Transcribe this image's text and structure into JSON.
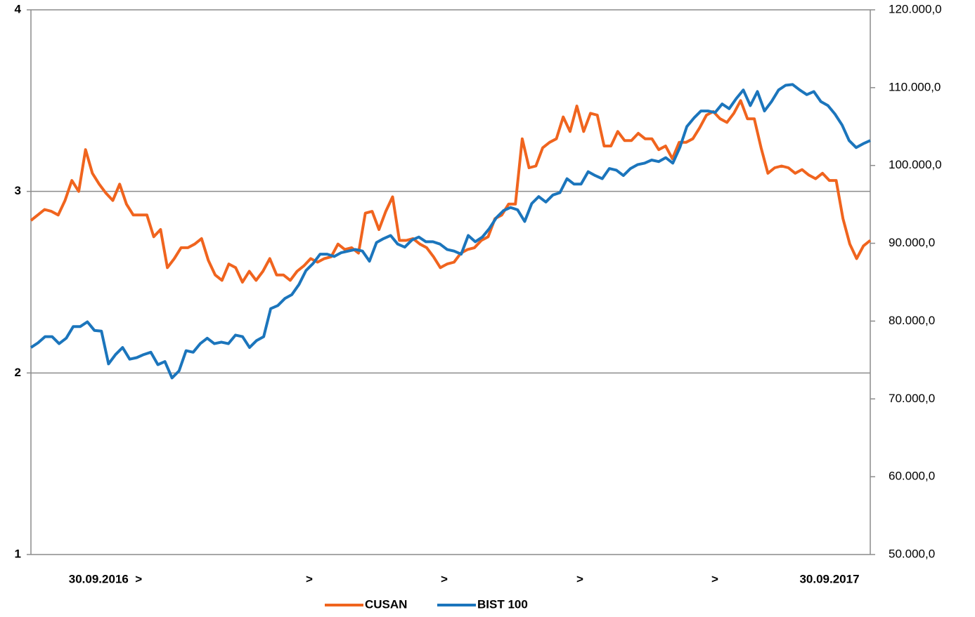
{
  "chart_data": {
    "type": "line",
    "xlabels": [
      "30.09.2016  >",
      ">",
      ">",
      ">",
      ">",
      "30.09.2017"
    ],
    "ylim": [
      1,
      4
    ],
    "yticks": [
      1,
      2,
      3,
      4
    ],
    "y2lim": [
      50000,
      120000
    ],
    "y2ticks": [
      {
        "value": 50000,
        "label": "50.000,0"
      },
      {
        "value": 60000,
        "label": "60.000,0"
      },
      {
        "value": 70000,
        "label": "70.000,0"
      },
      {
        "value": 80000,
        "label": "80.000,0"
      },
      {
        "value": 90000,
        "label": "90.000,0"
      },
      {
        "value": 100000,
        "label": "100.000,0"
      },
      {
        "value": 110000,
        "label": "110.000,0"
      },
      {
        "value": 120000,
        "label": "120.000,0"
      }
    ],
    "grid": true,
    "legend": "bottom",
    "series": [
      {
        "name": "CUSAN",
        "color": "#f0641e",
        "axis": "y",
        "values": [
          2.84,
          2.87,
          2.9,
          2.89,
          2.87,
          2.95,
          3.06,
          3.0,
          3.23,
          3.1,
          3.04,
          2.99,
          2.95,
          3.04,
          2.93,
          2.87,
          2.87,
          2.87,
          2.75,
          2.79,
          2.58,
          2.63,
          2.69,
          2.69,
          2.71,
          2.74,
          2.62,
          2.54,
          2.51,
          2.6,
          2.58,
          2.5,
          2.56,
          2.51,
          2.56,
          2.63,
          2.54,
          2.54,
          2.51,
          2.56,
          2.59,
          2.63,
          2.61,
          2.63,
          2.64,
          2.71,
          2.68,
          2.69,
          2.66,
          2.88,
          2.89,
          2.79,
          2.89,
          2.97,
          2.73,
          2.73,
          2.74,
          2.71,
          2.69,
          2.64,
          2.58,
          2.6,
          2.61,
          2.66,
          2.68,
          2.69,
          2.73,
          2.75,
          2.85,
          2.87,
          2.93,
          2.93,
          3.29,
          3.13,
          3.14,
          3.24,
          3.27,
          3.29,
          3.41,
          3.33,
          3.47,
          3.33,
          3.43,
          3.42,
          3.25,
          3.25,
          3.33,
          3.28,
          3.28,
          3.32,
          3.29,
          3.29,
          3.23,
          3.25,
          3.18,
          3.27,
          3.27,
          3.29,
          3.35,
          3.42,
          3.44,
          3.4,
          3.38,
          3.43,
          3.5,
          3.4,
          3.4,
          3.24,
          3.1,
          3.13,
          3.14,
          3.13,
          3.1,
          3.12,
          3.09,
          3.07,
          3.1,
          3.06,
          3.06,
          2.85,
          2.71,
          2.63,
          2.7,
          2.73
        ]
      },
      {
        "name": "BIST 100",
        "color": "#1b75bc",
        "axis": "y2",
        "values": [
          76600,
          77200,
          78000,
          78000,
          77100,
          77800,
          79300,
          79300,
          79900,
          78800,
          78700,
          74500,
          75700,
          76600,
          75100,
          75300,
          75700,
          76000,
          74400,
          74800,
          72700,
          73600,
          76200,
          76000,
          77100,
          77800,
          77100,
          77300,
          77100,
          78200,
          78000,
          76600,
          77500,
          78000,
          81600,
          82000,
          82900,
          83400,
          84700,
          86500,
          87400,
          88600,
          88600,
          88300,
          88800,
          89000,
          89200,
          89000,
          87700,
          90100,
          90600,
          91000,
          89900,
          89500,
          90400,
          90800,
          90200,
          90200,
          89900,
          89200,
          89000,
          88600,
          91000,
          90200,
          90800,
          91900,
          93300,
          94200,
          94600,
          94300,
          92800,
          95100,
          96000,
          95300,
          96200,
          96500,
          98300,
          97600,
          97600,
          99200,
          98700,
          98300,
          99600,
          99400,
          98700,
          99600,
          100100,
          100300,
          100700,
          100500,
          101000,
          100300,
          102300,
          105000,
          106100,
          107000,
          107000,
          106800,
          107900,
          107300,
          108600,
          109700,
          107700,
          109500,
          107000,
          108200,
          109700,
          110300,
          110400,
          109700,
          109100,
          109500,
          108200,
          107700,
          106600,
          105200,
          103200,
          102300,
          102800,
          103200
        ]
      }
    ]
  }
}
